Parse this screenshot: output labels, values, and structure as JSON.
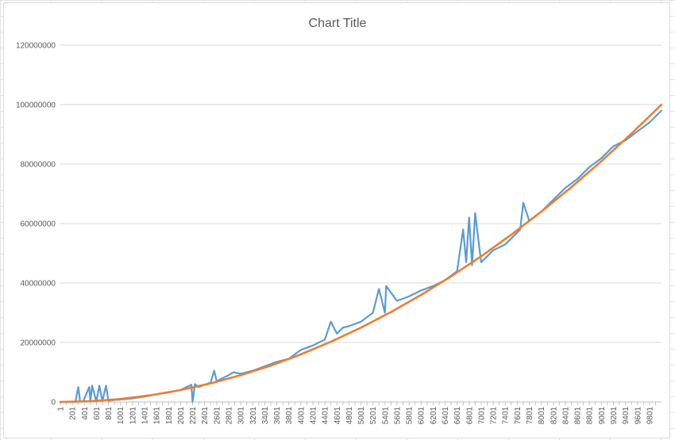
{
  "chart_data": {
    "type": "line",
    "title": "Chart Title",
    "xlabel": "",
    "ylabel": "",
    "ylim": [
      0,
      120000000
    ],
    "y_ticks": [
      "0",
      "20000000",
      "40000000",
      "60000000",
      "80000000",
      "100000000",
      "120000000"
    ],
    "y_tick_values": [
      0,
      20000000,
      40000000,
      60000000,
      80000000,
      100000000,
      120000000
    ],
    "x_range": [
      1,
      10000
    ],
    "x_ticks": [
      "1",
      "201",
      "401",
      "601",
      "801",
      "1001",
      "1201",
      "1401",
      "1601",
      "1801",
      "2001",
      "2201",
      "2401",
      "2601",
      "2801",
      "3001",
      "3201",
      "3401",
      "3601",
      "3801",
      "4001",
      "4201",
      "4401",
      "4601",
      "4801",
      "5001",
      "5201",
      "5401",
      "5601",
      "5801",
      "6001",
      "6201",
      "6401",
      "6601",
      "6801",
      "7001",
      "7201",
      "7401",
      "7601",
      "7801",
      "8001",
      "8201",
      "8401",
      "8601",
      "8801",
      "9001",
      "9201",
      "9401",
      "9601",
      "9801"
    ],
    "grid": true,
    "legend": "none",
    "series": [
      {
        "color": "#5B9BD5",
        "x": [
          1,
          250,
          300,
          330,
          380,
          480,
          500,
          530,
          600,
          650,
          700,
          760,
          800,
          900,
          1000,
          1200,
          1400,
          1600,
          1800,
          2000,
          2100,
          2180,
          2200,
          2240,
          2300,
          2400,
          2500,
          2560,
          2600,
          2700,
          2800,
          2880,
          3000,
          3200,
          3400,
          3600,
          3800,
          4000,
          4200,
          4400,
          4500,
          4600,
          4700,
          4800,
          5000,
          5200,
          5300,
          5400,
          5420,
          5600,
          5800,
          6000,
          6200,
          6400,
          6600,
          6700,
          6750,
          6800,
          6850,
          6900,
          7000,
          7200,
          7400,
          7600,
          7650,
          7700,
          7800,
          8000,
          8200,
          8400,
          8600,
          8800,
          9000,
          9200,
          9400,
          9600,
          9800,
          10000
        ],
        "y": [
          0,
          60000,
          5000000,
          90000,
          110000,
          5000000,
          150000,
          5500000,
          200000,
          5500000,
          250000,
          5500000,
          400000,
          700000,
          800000,
          1200000,
          1800000,
          2600000,
          3200000,
          4000000,
          5000000,
          5800000,
          0,
          6000000,
          5000000,
          5800000,
          6500000,
          10500000,
          7000000,
          8000000,
          9000000,
          10000000,
          9500000,
          10500000,
          12000000,
          13500000,
          14500000,
          17500000,
          19000000,
          21000000,
          27000000,
          23000000,
          25000000,
          25500000,
          27000000,
          30000000,
          38000000,
          30000000,
          39000000,
          34000000,
          35500000,
          37500000,
          39000000,
          41000000,
          44000000,
          58000000,
          47000000,
          62000000,
          46000000,
          63500000,
          47000000,
          51000000,
          53000000,
          57000000,
          58000000,
          67000000,
          61000000,
          64000000,
          68000000,
          72000000,
          75000000,
          79000000,
          82000000,
          86000000,
          88000000,
          91000000,
          94000000,
          98000000
        ]
      },
      {
        "color": "#ED7D31",
        "x": [
          1,
          500,
          1000,
          1500,
          2000,
          2500,
          3000,
          3500,
          4000,
          4500,
          5000,
          5500,
          6000,
          6500,
          7000,
          7500,
          8000,
          8500,
          9000,
          9500,
          10000
        ],
        "y": [
          0,
          250000,
          1000000,
          2250000,
          4000000,
          6250000,
          9000000,
          12250000,
          16000000,
          20250000,
          25000000,
          30250000,
          36000000,
          42250000,
          49000000,
          56250000,
          64000000,
          72250000,
          81000000,
          90250000,
          100000000
        ]
      }
    ]
  }
}
